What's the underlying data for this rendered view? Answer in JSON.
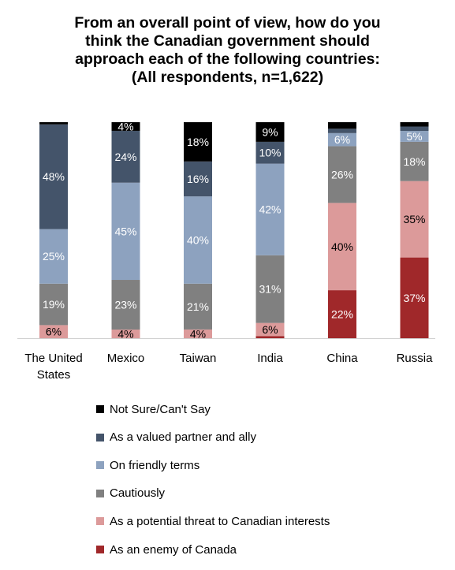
{
  "chart_data": {
    "type": "bar",
    "stacked": true,
    "title_lines": [
      "From an overall point of view, how do you",
      "think the Canadian government should",
      "approach each of the following countries:",
      "(All respondents, n=1,622)"
    ],
    "categories": [
      "The United States",
      "Mexico",
      "Taiwan",
      "India",
      "China",
      "Russia"
    ],
    "category_label_lines": [
      [
        "The United",
        "States"
      ],
      [
        "Mexico"
      ],
      [
        "Taiwan"
      ],
      [
        "India"
      ],
      [
        "China"
      ],
      [
        "Russia"
      ]
    ],
    "series": [
      {
        "name": "As an enemy of Canada",
        "color": "#A0282A",
        "label_color": "#ffffff",
        "values": [
          0,
          0,
          0,
          1,
          22,
          37
        ]
      },
      {
        "name": "As a potential threat to Canadian interests",
        "color": "#DC9A9A",
        "label_color": "#000000",
        "values": [
          6,
          4,
          4,
          6,
          40,
          35
        ]
      },
      {
        "name": "Cautiously",
        "color": "#808080",
        "label_color": "#ffffff",
        "values": [
          19,
          23,
          21,
          31,
          26,
          18
        ]
      },
      {
        "name": "On friendly terms",
        "color": "#8DA2BF",
        "label_color": "#ffffff",
        "values": [
          25,
          45,
          40,
          42,
          6,
          5
        ]
      },
      {
        "name": "As a valued partner and ally",
        "color": "#44546A",
        "label_color": "#ffffff",
        "values": [
          48,
          24,
          16,
          10,
          2,
          2
        ]
      },
      {
        "name": "Not Sure/Can't Say",
        "color": "#000000",
        "label_color": "#ffffff",
        "values": [
          1,
          4,
          18,
          9,
          3,
          2
        ]
      }
    ],
    "value_labels": [
      [
        "",
        "",
        "",
        "",
        "22%",
        "37%"
      ],
      [
        "6%",
        "4%",
        "4%",
        "6%",
        "40%",
        "35%"
      ],
      [
        "19%",
        "23%",
        "21%",
        "31%",
        "26%",
        "18%"
      ],
      [
        "25%",
        "45%",
        "40%",
        "42%",
        "6%",
        "5%"
      ],
      [
        "48%",
        "24%",
        "16%",
        "10%",
        "",
        ""
      ],
      [
        "",
        "4%",
        "18%",
        "9%",
        "",
        ""
      ]
    ],
    "unit": "%",
    "legend": {
      "position": "bottom",
      "order": [
        5,
        4,
        3,
        2,
        1,
        0
      ]
    },
    "grid": false
  }
}
